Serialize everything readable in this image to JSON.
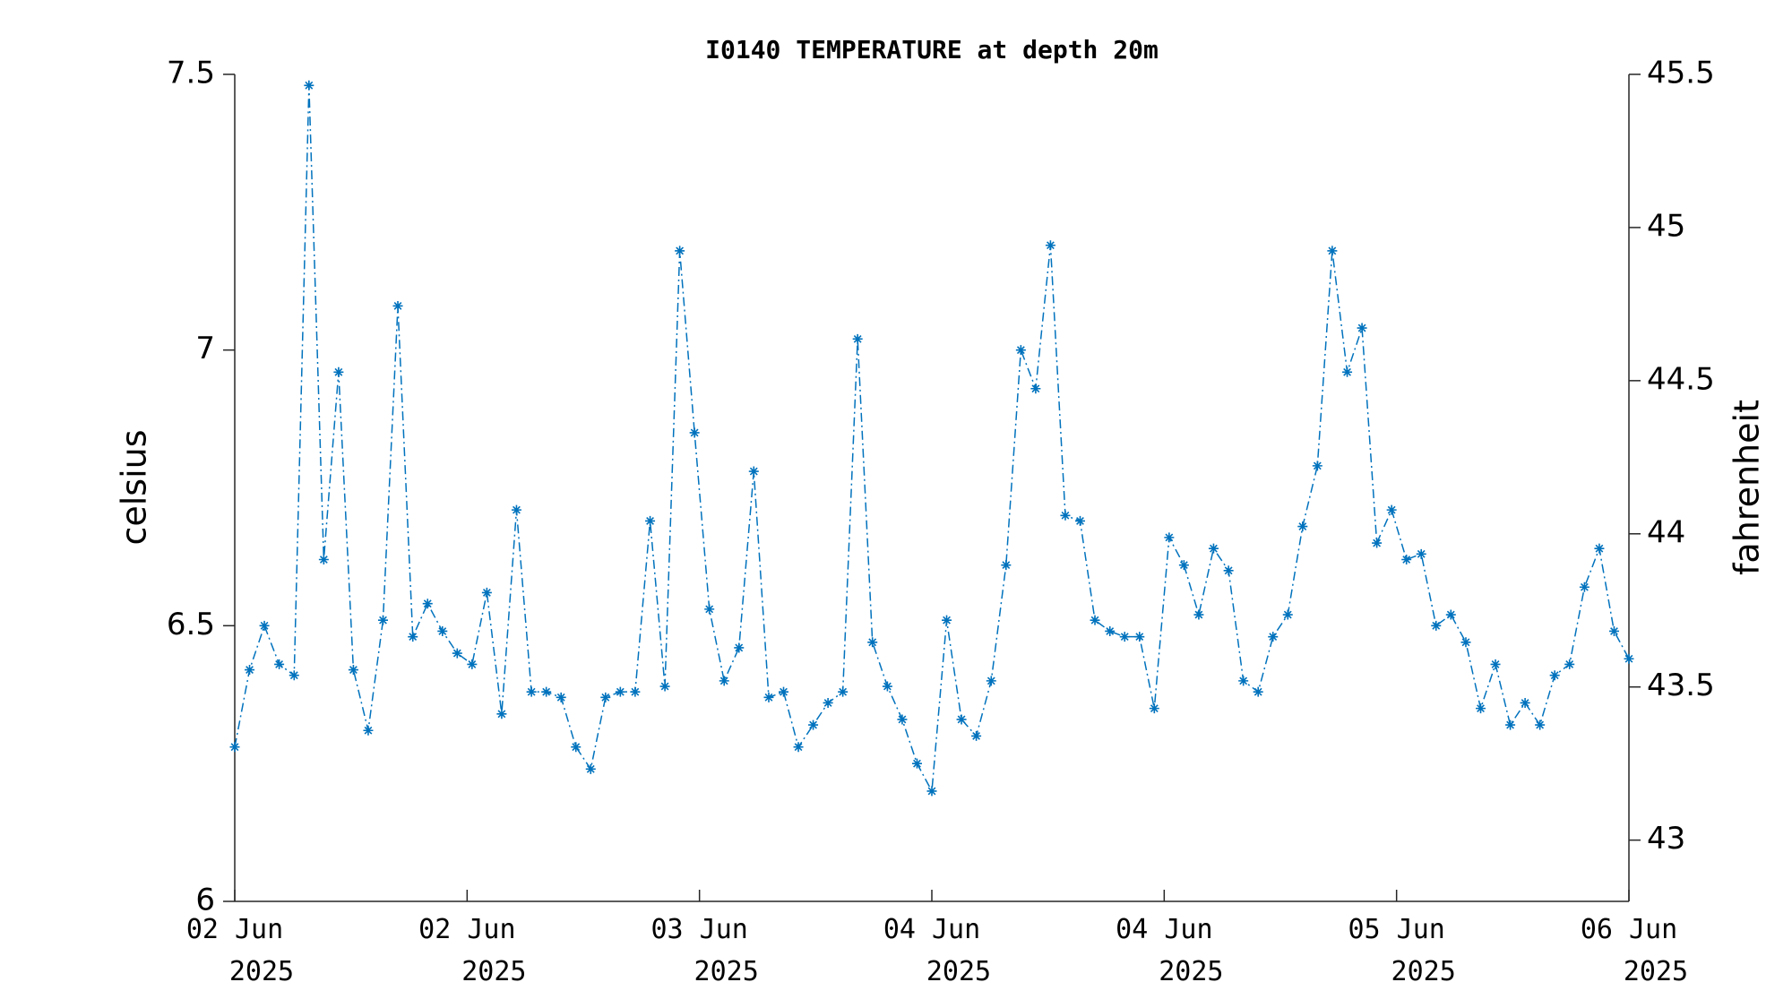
{
  "chart_data": {
    "type": "line",
    "title": "I0140 TEMPERATURE at depth 20m",
    "ylabel": "celsius",
    "y2label": "fahrenheit",
    "x": [
      0,
      1.02,
      2.04,
      3.06,
      4.09,
      5.11,
      6.13,
      7.15,
      8.17,
      9.19,
      10.21,
      11.23,
      12.26,
      13.28,
      14.3,
      15.32,
      16.34,
      17.36,
      18.38,
      19.4,
      20.43,
      21.45,
      22.47,
      23.49,
      24.51,
      25.53,
      26.55,
      27.57,
      28.6,
      29.62,
      30.64,
      31.66,
      32.68,
      33.7,
      34.72,
      35.74,
      36.77,
      37.79,
      38.81,
      39.83,
      40.85,
      41.87,
      42.89,
      43.91,
      44.94,
      45.96,
      46.98,
      48.0,
      49.02,
      50.04,
      51.06,
      52.09,
      53.11,
      54.13,
      55.15,
      56.17,
      57.19,
      58.21,
      59.23,
      60.26,
      61.28,
      62.3,
      63.32,
      64.34,
      65.36,
      66.38,
      67.4,
      68.43,
      69.45,
      70.47,
      71.49,
      72.51,
      73.53,
      74.55,
      75.57,
      76.6,
      77.62,
      78.64,
      79.66,
      80.68,
      81.7,
      82.72,
      83.74,
      84.77,
      85.79,
      86.81,
      87.83,
      88.85,
      89.87,
      90.89,
      91.91,
      92.94,
      93.96,
      94.98,
      96.0
    ],
    "series": [
      {
        "color": "#0072bd",
        "values": [
          6.28,
          6.42,
          6.5,
          6.43,
          6.41,
          7.48,
          6.62,
          6.96,
          6.42,
          6.31,
          6.51,
          7.08,
          6.48,
          6.54,
          6.49,
          6.45,
          6.43,
          6.56,
          6.34,
          6.71,
          6.38,
          6.38,
          6.37,
          6.28,
          6.24,
          6.37,
          6.38,
          6.38,
          6.69,
          6.39,
          7.18,
          6.85,
          6.53,
          6.4,
          6.46,
          6.78,
          6.37,
          6.38,
          6.28,
          6.32,
          6.36,
          6.38,
          7.02,
          6.47,
          6.39,
          6.33,
          6.25,
          6.2,
          6.51,
          6.33,
          6.3,
          6.4,
          6.61,
          7.0,
          6.93,
          7.19,
          6.7,
          6.69,
          6.51,
          6.49,
          6.48,
          6.48,
          6.35,
          6.66,
          6.61,
          6.52,
          6.64,
          6.6,
          6.4,
          6.38,
          6.48,
          6.52,
          6.68,
          6.79,
          7.18,
          6.96,
          7.04,
          6.65,
          6.71,
          6.62,
          6.63,
          6.5,
          6.52,
          6.47,
          6.35,
          6.43,
          6.32,
          6.36,
          6.32,
          6.41,
          6.43,
          6.57,
          6.64,
          6.49,
          6.44
        ]
      }
    ],
    "xlim": [
      0,
      96
    ],
    "xticks": [
      {
        "value": 0,
        "label": "02 Jun 2025"
      },
      {
        "value": 16,
        "label": "02 Jun 2025"
      },
      {
        "value": 32,
        "label": "03 Jun 2025"
      },
      {
        "value": 48,
        "label": "04 Jun 2025"
      },
      {
        "value": 64,
        "label": "04 Jun 2025"
      },
      {
        "value": 80,
        "label": "05 Jun 2025"
      },
      {
        "value": 96,
        "label": "06 Jun 2025"
      }
    ],
    "ylim": [
      6,
      7.5
    ],
    "yticks": [
      6,
      6.5,
      7,
      7.5
    ],
    "y2lim": [
      42.8,
      45.5
    ],
    "y2ticks": [
      43,
      43.5,
      44,
      44.5,
      45,
      45.5
    ]
  }
}
